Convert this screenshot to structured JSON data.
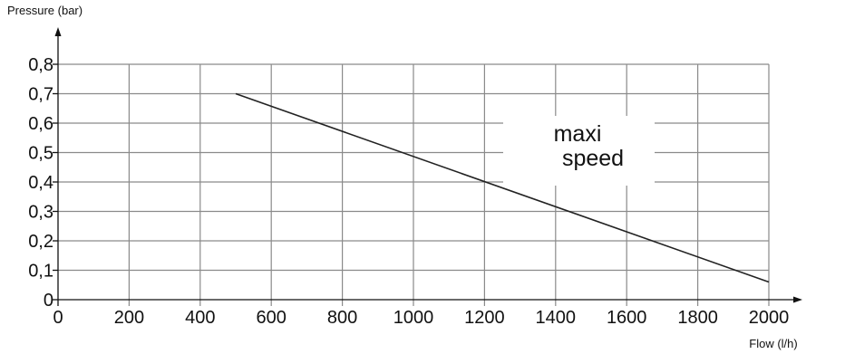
{
  "chart_data": {
    "type": "line",
    "ylabel": "Pressure (bar)",
    "xlabel": "Flow (l/h)",
    "xlim": [
      0,
      2000
    ],
    "ylim": [
      0,
      0.8
    ],
    "x_ticks": [
      "0",
      "200",
      "400",
      "600",
      "800",
      "1000",
      "1200",
      "1400",
      "1600",
      "1800",
      "2000"
    ],
    "y_ticks": [
      "0",
      "0,1",
      "0,2",
      "0,3",
      "0,4",
      "0,5",
      "0,6",
      "0,7",
      "0,8"
    ],
    "grid": true,
    "series": [
      {
        "x": [
          500,
          2000
        ],
        "y": [
          0.7,
          0.06
        ]
      }
    ],
    "annotation": [
      "maxi",
      "speed"
    ]
  }
}
